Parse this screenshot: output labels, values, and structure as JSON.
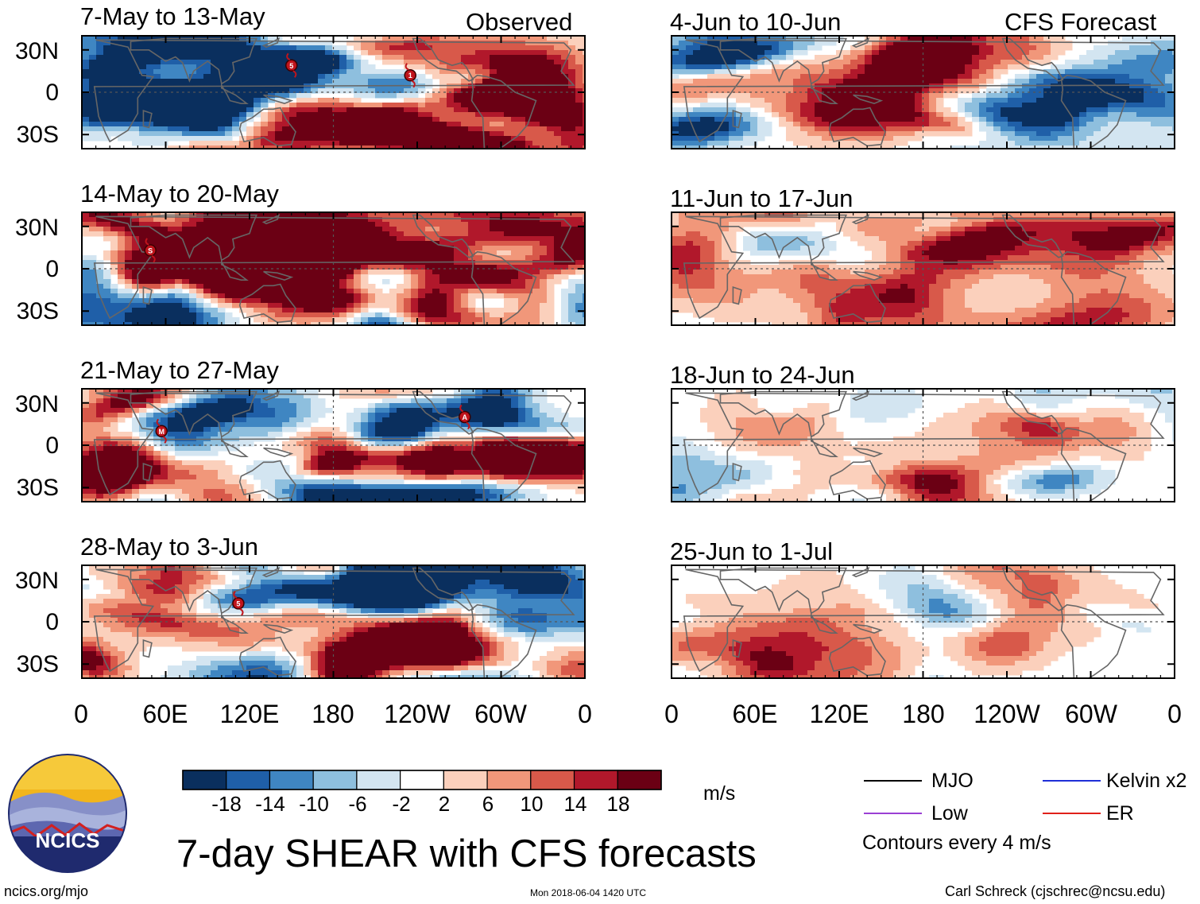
{
  "figure": {
    "title": "7-day SHEAR with CFS forecasts",
    "left_header": "Observed",
    "right_header": "CFS Forecast",
    "units": "m/s",
    "timestamp": "Mon 2018-06-04 1420 UTC",
    "site": "ncics.org/mjo",
    "author": "Carl Schreck (cjschrec@ncsu.edu)",
    "logo_text": "NCICS"
  },
  "chart_data": {
    "type": "heatmap",
    "variable": "7-day vertical wind shear anomaly (m/s)",
    "y_ticks": [
      "30N",
      "0",
      "30S"
    ],
    "x_ticks": [
      "0",
      "60E",
      "120E",
      "180",
      "120W",
      "60W",
      "0"
    ],
    "colorbar": {
      "levels": [
        "-18",
        "-14",
        "-10",
        "-6",
        "-2",
        "2",
        "6",
        "10",
        "14",
        "18"
      ],
      "colors": [
        "#0a2f5e",
        "#1f5fa8",
        "#3f86c2",
        "#8ebfde",
        "#d3e5f1",
        "#ffffff",
        "#fbd0bc",
        "#f1977a",
        "#d8594a",
        "#b1182b",
        "#6b0014"
      ]
    },
    "panels": [
      {
        "title": "7-May to 13-May",
        "source": "Observed",
        "storms": [
          {
            "label": "5",
            "lon": 150,
            "lat": 19
          },
          {
            "label": "1",
            "lon": 235,
            "lat": 12
          }
        ]
      },
      {
        "title": "14-May to 20-May",
        "source": "Observed",
        "storms": [
          {
            "label": "S",
            "lon": 49,
            "lat": 13
          }
        ]
      },
      {
        "title": "21-May to 27-May",
        "source": "Observed",
        "storms": [
          {
            "label": "M",
            "lon": 57,
            "lat": 10
          },
          {
            "label": "A",
            "lon": 274,
            "lat": 20
          }
        ]
      },
      {
        "title": "28-May to 3-Jun",
        "source": "Observed",
        "storms": [
          {
            "label": "5",
            "lon": 112,
            "lat": 13
          }
        ]
      },
      {
        "title": "4-Jun to 10-Jun",
        "source": "CFS Forecast",
        "storms": []
      },
      {
        "title": "11-Jun to 17-Jun",
        "source": "CFS Forecast",
        "storms": []
      },
      {
        "title": "18-Jun to 24-Jun",
        "source": "CFS Forecast",
        "storms": []
      },
      {
        "title": "25-Jun to 1-Jul",
        "source": "CFS Forecast",
        "storms": []
      }
    ]
  },
  "legend": {
    "items": [
      {
        "label": "MJO",
        "color": "#000000"
      },
      {
        "label": "Kelvin x2",
        "color": "#1f2fd8"
      },
      {
        "label": "Low",
        "color": "#9b3fd4"
      },
      {
        "label": "ER",
        "color": "#e0201a"
      }
    ],
    "note": "Contours every 4 m/s"
  }
}
